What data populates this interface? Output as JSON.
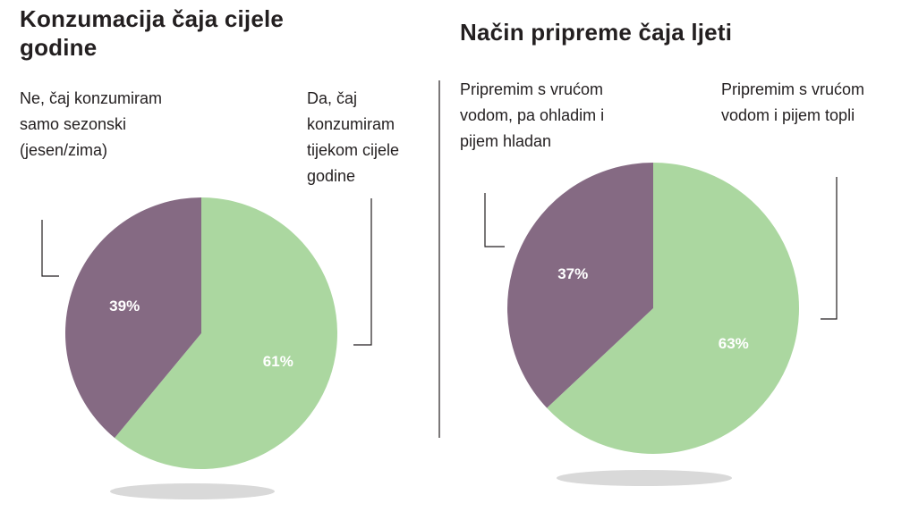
{
  "colors": {
    "green": "#abd7a0",
    "purple": "#856a83",
    "text": "#231f20",
    "shadow": "#d9d9d9",
    "divider": "#231f20"
  },
  "chart_data": [
    {
      "type": "pie",
      "title": "Konzumacija čaja cijele godine",
      "slices": [
        {
          "label": "Da, čaj konzumiram tijekom cijele godine",
          "value": 61,
          "value_label": "61%",
          "color": "#abd7a0"
        },
        {
          "label": "Ne, čaj konzumiram samo sezonski (jesen/zima)",
          "value": 39,
          "value_label": "39%",
          "color": "#856a83"
        }
      ]
    },
    {
      "type": "pie",
      "title": "Način pripreme čaja ljeti",
      "slices": [
        {
          "label": "Pripremim s vrućom vodom i pijem topli",
          "value": 63,
          "value_label": "63%",
          "color": "#abd7a0"
        },
        {
          "label": "Pripremim s vrućom vodom, pa ohladim i pijem hladan",
          "value": 37,
          "value_label": "37%",
          "color": "#856a83"
        }
      ]
    }
  ]
}
